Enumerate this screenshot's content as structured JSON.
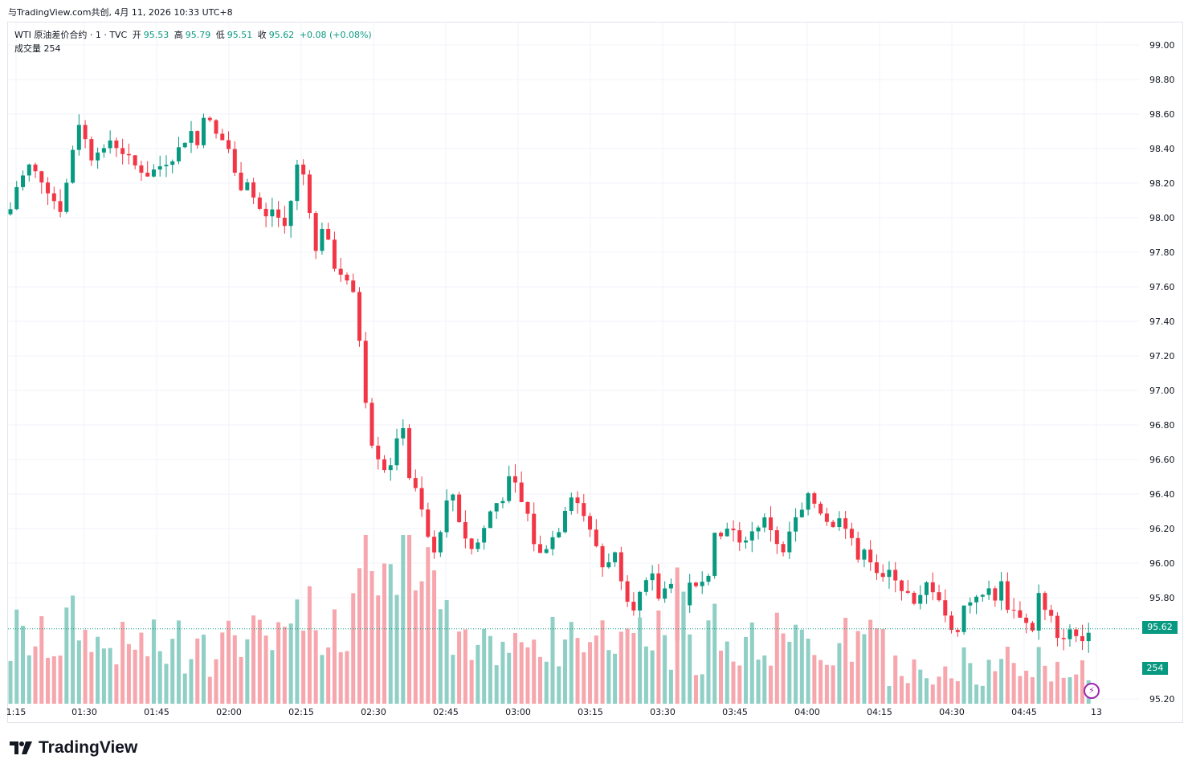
{
  "header": {
    "caption": "与TradingView.com共创, 4月 11, 2026 10:33 UTC+8"
  },
  "legend": {
    "symbol": "WTI 原油差价合约 · 1 · TVC",
    "open_label": "开",
    "open": "95.53",
    "high_label": "高",
    "high": "95.79",
    "low_label": "低",
    "low": "95.51",
    "close_label": "收",
    "close": "95.62",
    "change": "+0.08 (+0.08%)",
    "volume_label": "成交量",
    "volume": "254"
  },
  "last_price_label": "95.62",
  "last_volume_label": "254",
  "brand": "TradingView",
  "colors": {
    "up": "#089981",
    "down": "#f23645",
    "vol_up": "#8fcfc5",
    "vol_down": "#f6a6ac",
    "grid": "#f0f3fa"
  },
  "chart_data": {
    "type": "candlestick",
    "title": "WTI 原油差价合约 · 1 · TVC",
    "ylim": [
      95.15,
      99.15
    ],
    "y_ticks": [
      "99.00",
      "98.80",
      "98.60",
      "98.40",
      "98.20",
      "98.00",
      "97.80",
      "97.60",
      "97.40",
      "97.20",
      "97.00",
      "96.80",
      "96.60",
      "96.40",
      "96.20",
      "96.00",
      "95.80",
      "95.20"
    ],
    "x_ticks": [
      "1:15",
      "01:30",
      "01:45",
      "02:00",
      "02:15",
      "02:30",
      "02:45",
      "03:00",
      "03:15",
      "03:30",
      "03:45",
      "04:00",
      "04:15",
      "04:30",
      "04:45",
      "13"
    ],
    "close_path": [
      [
        0,
        98.05
      ],
      [
        1,
        98.18
      ],
      [
        3,
        98.3
      ],
      [
        5,
        98.22
      ],
      [
        7,
        98.1
      ],
      [
        8,
        98.05
      ],
      [
        9,
        98.2
      ],
      [
        10,
        98.4
      ],
      [
        11,
        98.55
      ],
      [
        12,
        98.45
      ],
      [
        13,
        98.35
      ],
      [
        14,
        98.4
      ],
      [
        15,
        98.38
      ],
      [
        16,
        98.45
      ],
      [
        18,
        98.38
      ],
      [
        20,
        98.3
      ],
      [
        22,
        98.25
      ],
      [
        24,
        98.3
      ],
      [
        26,
        98.35
      ],
      [
        28,
        98.45
      ],
      [
        29,
        98.5
      ],
      [
        30,
        98.42
      ],
      [
        31,
        98.6
      ],
      [
        32,
        98.55
      ],
      [
        33,
        98.48
      ],
      [
        34,
        98.45
      ],
      [
        35,
        98.4
      ],
      [
        36,
        98.25
      ],
      [
        37,
        98.18
      ],
      [
        38,
        98.22
      ],
      [
        39,
        98.12
      ],
      [
        40,
        98.05
      ],
      [
        41,
        98.0
      ],
      [
        42,
        98.05
      ],
      [
        44,
        97.95
      ],
      [
        45,
        98.1
      ],
      [
        46,
        98.3
      ],
      [
        47,
        98.25
      ],
      [
        48,
        98.05
      ],
      [
        49,
        97.8
      ],
      [
        50,
        97.95
      ],
      [
        51,
        97.85
      ],
      [
        52,
        97.72
      ],
      [
        53,
        97.68
      ],
      [
        54,
        97.62
      ],
      [
        55,
        97.55
      ],
      [
        56,
        97.3
      ],
      [
        57,
        96.95
      ],
      [
        58,
        96.7
      ],
      [
        59,
        96.62
      ],
      [
        60,
        96.55
      ],
      [
        61,
        96.58
      ],
      [
        62,
        96.7
      ],
      [
        63,
        96.8
      ],
      [
        64,
        96.5
      ],
      [
        65,
        96.42
      ],
      [
        66,
        96.3
      ],
      [
        67,
        96.15
      ],
      [
        68,
        96.05
      ],
      [
        69,
        96.2
      ],
      [
        70,
        96.35
      ],
      [
        71,
        96.4
      ],
      [
        72,
        96.25
      ],
      [
        73,
        96.15
      ],
      [
        74,
        96.08
      ],
      [
        75,
        96.12
      ],
      [
        76,
        96.2
      ],
      [
        77,
        96.3
      ],
      [
        78,
        96.35
      ],
      [
        79,
        96.38
      ],
      [
        80,
        96.48
      ],
      [
        81,
        96.45
      ],
      [
        82,
        96.35
      ],
      [
        83,
        96.28
      ],
      [
        84,
        96.12
      ],
      [
        85,
        96.05
      ],
      [
        86,
        96.1
      ],
      [
        87,
        96.15
      ],
      [
        88,
        96.2
      ],
      [
        89,
        96.32
      ],
      [
        90,
        96.4
      ],
      [
        91,
        96.35
      ],
      [
        92,
        96.28
      ],
      [
        93,
        96.18
      ],
      [
        94,
        96.1
      ],
      [
        95,
        95.98
      ],
      [
        96,
        96.02
      ],
      [
        97,
        96.05
      ],
      [
        98,
        95.92
      ],
      [
        99,
        95.8
      ],
      [
        100,
        95.75
      ],
      [
        101,
        95.82
      ],
      [
        102,
        95.88
      ],
      [
        103,
        95.92
      ],
      [
        104,
        95.8
      ],
      [
        105,
        95.85
      ],
      [
        106,
        95.9
      ],
      [
        107,
        95.55
      ],
      [
        108,
        95.75
      ],
      [
        109,
        95.9
      ],
      [
        110,
        95.85
      ],
      [
        111,
        95.88
      ],
      [
        112,
        95.95
      ],
      [
        113,
        96.2
      ],
      [
        114,
        96.15
      ],
      [
        115,
        96.22
      ],
      [
        116,
        96.18
      ],
      [
        117,
        96.1
      ],
      [
        118,
        96.15
      ],
      [
        119,
        96.18
      ],
      [
        120,
        96.22
      ],
      [
        121,
        96.25
      ],
      [
        122,
        96.2
      ],
      [
        123,
        96.12
      ],
      [
        124,
        96.05
      ],
      [
        125,
        96.18
      ],
      [
        126,
        96.25
      ],
      [
        127,
        96.3
      ],
      [
        128,
        96.38
      ],
      [
        129,
        96.35
      ],
      [
        130,
        96.3
      ],
      [
        131,
        96.25
      ],
      [
        132,
        96.2
      ],
      [
        133,
        96.28
      ],
      [
        134,
        96.22
      ],
      [
        135,
        96.15
      ],
      [
        136,
        96.0
      ],
      [
        137,
        96.1
      ],
      [
        138,
        96.02
      ],
      [
        139,
        95.95
      ],
      [
        140,
        95.9
      ],
      [
        141,
        95.95
      ],
      [
        142,
        95.92
      ],
      [
        143,
        95.85
      ],
      [
        144,
        95.82
      ],
      [
        145,
        95.75
      ],
      [
        146,
        95.8
      ],
      [
        147,
        95.88
      ],
      [
        148,
        95.85
      ],
      [
        149,
        95.8
      ],
      [
        150,
        95.7
      ],
      [
        151,
        95.6
      ],
      [
        152,
        95.62
      ],
      [
        153,
        95.75
      ],
      [
        154,
        95.78
      ],
      [
        155,
        95.82
      ],
      [
        156,
        95.8
      ],
      [
        157,
        95.85
      ],
      [
        158,
        95.8
      ],
      [
        159,
        95.88
      ],
      [
        160,
        95.75
      ],
      [
        161,
        95.72
      ],
      [
        162,
        95.7
      ],
      [
        163,
        95.65
      ],
      [
        164,
        95.62
      ],
      [
        165,
        95.82
      ],
      [
        166,
        95.72
      ],
      [
        167,
        95.68
      ],
      [
        168,
        95.55
      ],
      [
        169,
        95.58
      ],
      [
        170,
        95.6
      ],
      [
        171,
        95.58
      ],
      [
        172,
        95.55
      ],
      [
        173,
        95.62
      ]
    ],
    "volume_max": 830
  }
}
